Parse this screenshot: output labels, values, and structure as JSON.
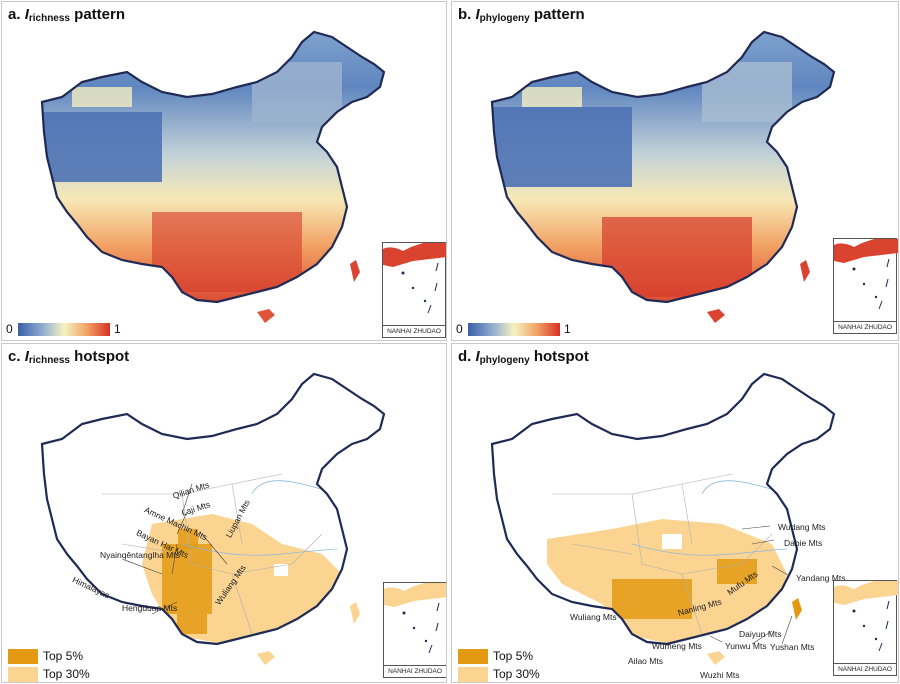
{
  "panels": {
    "a": {
      "prefix": "a. ",
      "symbol": "I",
      "subscript": "richness",
      "suffix": " pattern"
    },
    "b": {
      "prefix": "b. ",
      "symbol": "I",
      "subscript": "phylogeny",
      "suffix": " pattern"
    },
    "c": {
      "prefix": "c. ",
      "symbol": "I",
      "subscript": "richness",
      "suffix": " hotspot"
    },
    "d": {
      "prefix": "d. ",
      "symbol": "I",
      "subscript": "phylogeny",
      "suffix": " hotspot"
    }
  },
  "colorbar": {
    "min_label": "0",
    "max_label": "1",
    "colors": [
      "#3b5fa8",
      "#8aa8cf",
      "#f6f2c2",
      "#f2a264",
      "#d73027"
    ]
  },
  "inset_label": "NANHAI ZHUDAO",
  "legend": [
    {
      "label": "Top 5%",
      "color": "#e39a12"
    },
    {
      "label": "Top 30%",
      "color": "#fbd491"
    }
  ],
  "mountains_c": [
    "Qilian Mts",
    "Laji Mts",
    "Amne Machin Mts",
    "Liupan Mts",
    "Bayan Har Mts",
    "Nyainqêntanglha Mts",
    "Himalayas",
    "Wuliang Mts",
    "Hengduan Mts"
  ],
  "mountains_d": [
    "Wudang Mts",
    "Dabie Mts",
    "Yandang Mts",
    "Mufu Mts",
    "Wuliang Mts",
    "Nanling Mts",
    "Daiyun Mts",
    "Yunwu Mts",
    "Wumeng Mts",
    "Yushan Mts",
    "Ailao Mts",
    "Wuzhi Mts"
  ],
  "colors": {
    "outline": "#1f2a55",
    "province": "#b0b0b0",
    "river": "#8fb8de",
    "cool": "#3b5fa8",
    "warm": "#d73027"
  }
}
